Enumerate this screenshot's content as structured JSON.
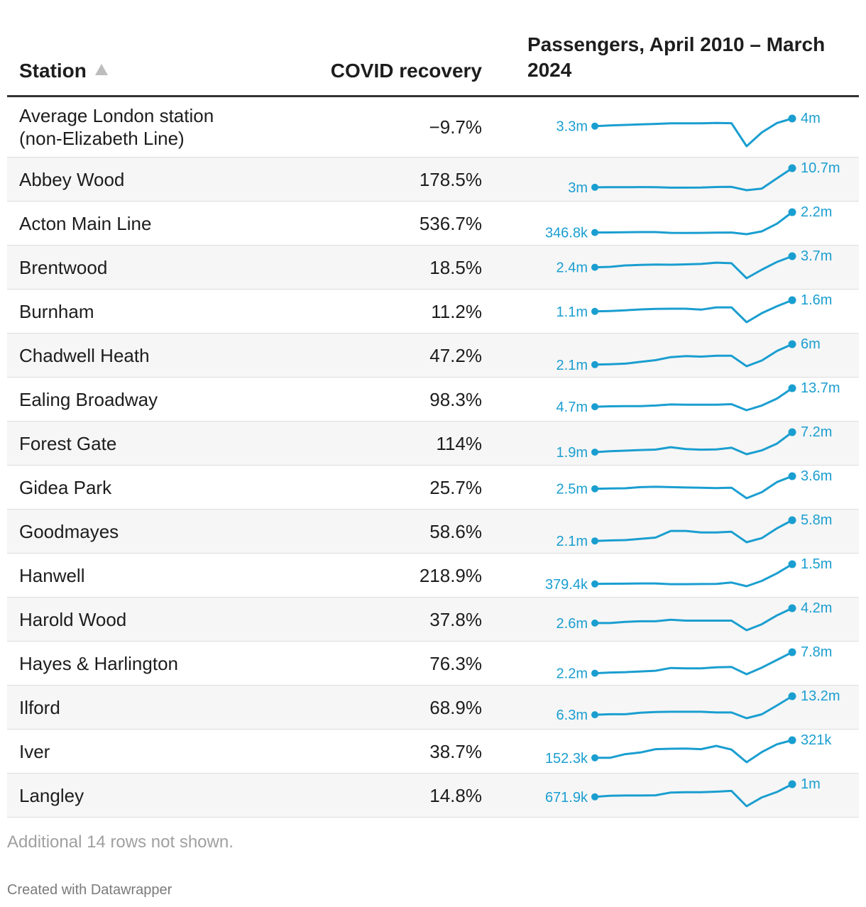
{
  "table": {
    "columns": {
      "station": "Station",
      "covid": "COVID recovery",
      "passengers": "Passengers, April 2010 – March 2024"
    },
    "sort_icon": "sort-ascending-triangle",
    "footnote": "Additional 14 rows not shown.",
    "credit": "Created with Datawrapper"
  },
  "colors": {
    "line": "#1a9ed0",
    "header_rule": "#333333",
    "row_alt": "#f6f6f6"
  },
  "chart_data": {
    "type": "table",
    "sparkline_type": "line",
    "years": [
      "2010-11",
      "2011-12",
      "2012-13",
      "2013-14",
      "2014-15",
      "2015-16",
      "2016-17",
      "2017-18",
      "2018-19",
      "2019-20",
      "2020-21",
      "2021-22",
      "2022-23",
      "2023-24"
    ],
    "rows": [
      {
        "station": "Average London station\n(non-Elizabeth Line)",
        "covid": "−9.7%",
        "start_label": "3.3m",
        "end_label": "4m",
        "values": [
          3.3,
          3.36,
          3.41,
          3.46,
          3.5,
          3.56,
          3.56,
          3.56,
          3.59,
          3.57,
          1.45,
          2.72,
          3.59,
          4.0
        ]
      },
      {
        "station": "Abbey Wood",
        "covid": "178.5%",
        "start_label": "3m",
        "end_label": "10.7m",
        "values": [
          3.0,
          3.04,
          3.04,
          3.09,
          3.04,
          2.87,
          2.88,
          2.93,
          3.14,
          3.18,
          1.84,
          2.5,
          6.65,
          10.7
        ]
      },
      {
        "station": "Acton Main Line",
        "covid": "536.7%",
        "start_label": "346.8k",
        "end_label": "2.2m",
        "values": [
          0.347,
          0.355,
          0.366,
          0.386,
          0.386,
          0.31,
          0.305,
          0.31,
          0.33,
          0.345,
          0.19,
          0.45,
          1.15,
          2.2
        ]
      },
      {
        "station": "Brentwood",
        "covid": "18.5%",
        "start_label": "2.4m",
        "end_label": "3.7m",
        "values": [
          2.4,
          2.45,
          2.62,
          2.68,
          2.72,
          2.7,
          2.74,
          2.79,
          2.94,
          2.88,
          1.12,
          2.12,
          3.03,
          3.7
        ]
      },
      {
        "station": "Burnham",
        "covid": "11.2%",
        "start_label": "1.1m",
        "end_label": "1.6m",
        "values": [
          1.1,
          1.12,
          1.15,
          1.19,
          1.21,
          1.22,
          1.22,
          1.18,
          1.28,
          1.28,
          0.62,
          1.02,
          1.33,
          1.6
        ]
      },
      {
        "station": "Chadwell Heath",
        "covid": "47.2%",
        "start_label": "2.1m",
        "end_label": "6m",
        "values": [
          2.1,
          2.17,
          2.29,
          2.63,
          2.95,
          3.53,
          3.73,
          3.63,
          3.79,
          3.79,
          1.8,
          2.89,
          4.71,
          6.0
        ]
      },
      {
        "station": "Ealing Broadway",
        "covid": "98.3%",
        "start_label": "4.7m",
        "end_label": "13.7m",
        "values": [
          4.7,
          4.92,
          5.03,
          5.03,
          5.3,
          5.83,
          5.72,
          5.72,
          5.72,
          5.95,
          3.03,
          5.31,
          8.69,
          13.7
        ]
      },
      {
        "station": "Forest Gate",
        "covid": "114%",
        "start_label": "1.9m",
        "end_label": "7.2m",
        "values": [
          1.9,
          2.14,
          2.3,
          2.47,
          2.58,
          3.22,
          2.72,
          2.55,
          2.64,
          3.07,
          1.35,
          2.37,
          4.17,
          7.2
        ]
      },
      {
        "station": "Gidea Park",
        "covid": "25.7%",
        "start_label": "2.5m",
        "end_label": "3.6m",
        "values": [
          2.5,
          2.52,
          2.54,
          2.64,
          2.67,
          2.64,
          2.61,
          2.59,
          2.56,
          2.59,
          1.67,
          2.2,
          3.09,
          3.6
        ]
      },
      {
        "station": "Goodmayes",
        "covid": "58.6%",
        "start_label": "2.1m",
        "end_label": "5.8m",
        "values": [
          2.1,
          2.19,
          2.25,
          2.47,
          2.69,
          3.89,
          3.89,
          3.62,
          3.62,
          3.73,
          1.87,
          2.61,
          4.36,
          5.8
        ]
      },
      {
        "station": "Hanwell",
        "covid": "218.9%",
        "start_label": "379.4k",
        "end_label": "1.5m",
        "values": [
          0.379,
          0.389,
          0.395,
          0.406,
          0.406,
          0.367,
          0.367,
          0.372,
          0.378,
          0.459,
          0.248,
          0.551,
          0.982,
          1.5
        ]
      },
      {
        "station": "Harold Wood",
        "covid": "37.8%",
        "start_label": "2.6m",
        "end_label": "4.2m",
        "values": [
          2.6,
          2.6,
          2.73,
          2.79,
          2.79,
          2.96,
          2.86,
          2.86,
          2.86,
          2.86,
          1.83,
          2.47,
          3.43,
          4.2
        ]
      },
      {
        "station": "Hayes & Harlington",
        "covid": "76.3%",
        "start_label": "2.2m",
        "end_label": "7.8m",
        "values": [
          2.2,
          2.38,
          2.47,
          2.66,
          2.85,
          3.59,
          3.5,
          3.5,
          3.78,
          3.87,
          1.93,
          3.69,
          5.73,
          7.8
        ]
      },
      {
        "station": "Ilford",
        "covid": "68.9%",
        "start_label": "6.3m",
        "end_label": "13.2m",
        "values": [
          6.3,
          6.48,
          6.48,
          7.06,
          7.32,
          7.41,
          7.41,
          7.41,
          7.15,
          7.15,
          5.0,
          6.46,
          9.76,
          13.2
        ]
      },
      {
        "station": "Iver",
        "covid": "38.7%",
        "start_label": "152.3k",
        "end_label": "321k",
        "values": [
          152.3,
          152.3,
          187.6,
          203.3,
          235.3,
          239.2,
          241.2,
          235.3,
          266.6,
          231.3,
          109.7,
          207.2,
          282.3,
          321.0
        ]
      },
      {
        "station": "Langley",
        "covid": "14.8%",
        "start_label": "671.9k",
        "end_label": "1m",
        "values": [
          0.672,
          0.7,
          0.707,
          0.707,
          0.714,
          0.785,
          0.793,
          0.793,
          0.807,
          0.828,
          0.43,
          0.658,
          0.8,
          1.0
        ]
      }
    ]
  }
}
